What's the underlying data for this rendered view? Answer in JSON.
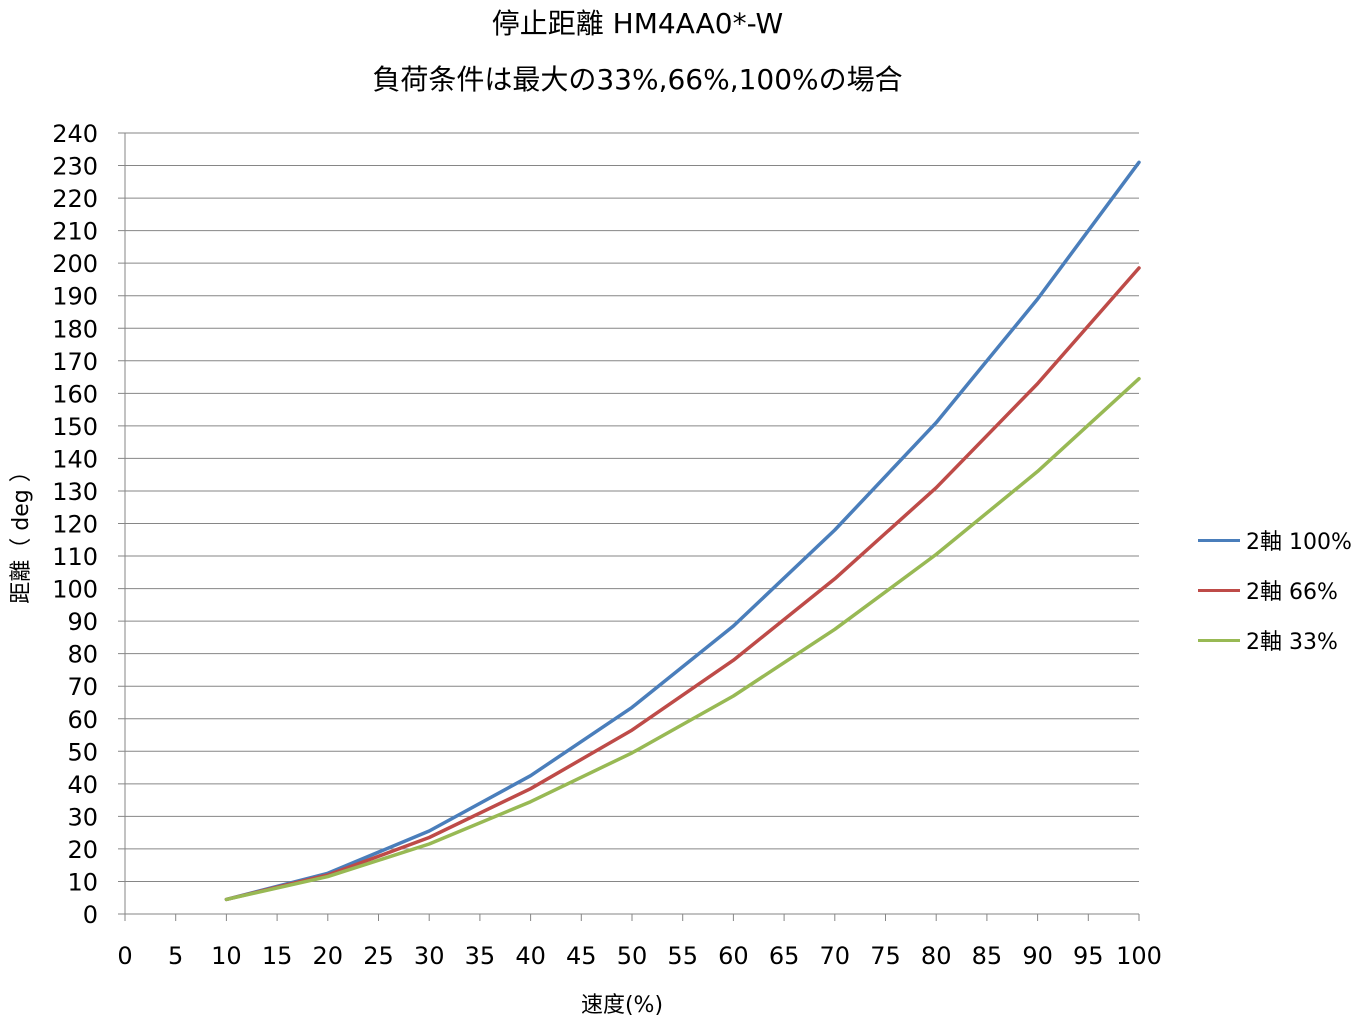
{
  "chart_data": {
    "type": "line",
    "title": "停止距離 HM4AA0*-W",
    "subtitle": "負荷条件は最大の33%,66%,100%の場合",
    "xlabel": "速度(%)",
    "ylabel": "距離（ deg ）",
    "x": [
      10,
      20,
      30,
      40,
      50,
      60,
      70,
      80,
      90,
      100
    ],
    "xlim": [
      0,
      100
    ],
    "xticks": [
      0,
      5,
      10,
      15,
      20,
      25,
      30,
      35,
      40,
      45,
      50,
      55,
      60,
      65,
      70,
      75,
      80,
      85,
      90,
      95,
      100
    ],
    "ylim": [
      0,
      240
    ],
    "yticks": [
      0,
      10,
      20,
      30,
      40,
      50,
      60,
      70,
      80,
      90,
      100,
      110,
      120,
      130,
      140,
      150,
      160,
      170,
      180,
      190,
      200,
      210,
      220,
      230,
      240
    ],
    "grid": "horizontal",
    "legend_position": "right",
    "series": [
      {
        "name": "2軸 100%",
        "color": "#4a7ebb",
        "values": [
          4.5,
          12.5,
          25.5,
          42.5,
          63.5,
          88.5,
          118,
          151,
          189,
          231
        ]
      },
      {
        "name": "2軸 66%",
        "color": "#be4b48",
        "values": [
          4.5,
          12,
          23.5,
          38.5,
          56.5,
          78,
          103,
          131,
          163,
          198.5
        ]
      },
      {
        "name": "2軸 33%",
        "color": "#98b954",
        "values": [
          4.5,
          11.5,
          21.5,
          34.5,
          49.5,
          67,
          87.5,
          110.5,
          136,
          164.5
        ]
      }
    ]
  }
}
